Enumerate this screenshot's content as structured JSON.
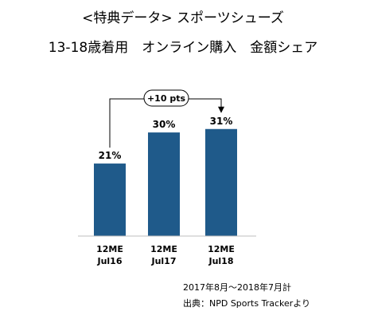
{
  "header": {
    "title": "<特典データ> スポーツシューズ",
    "subtitle": "13-18歳着用　オンライン購入　金額シェア"
  },
  "annotation": {
    "change_label": "+10 pts"
  },
  "footnotes": {
    "period": "2017年8月～2018年7月計",
    "source": "出典：NPD Sports Trackerより"
  },
  "colors": {
    "bar": "#1f5a8a",
    "axis": "#bfbfbf",
    "arrow": "#000000"
  },
  "chart_data": {
    "type": "bar",
    "title": "13-18歳着用　オンライン購入　金額シェア",
    "categories": [
      [
        "12ME",
        "Jul16"
      ],
      [
        "12ME",
        "Jul17"
      ],
      [
        "12ME",
        "Jul18"
      ]
    ],
    "values": [
      21,
      30,
      31
    ],
    "value_labels": [
      "21%",
      "30%",
      "31%"
    ],
    "unit": "%",
    "ylim": [
      0,
      35
    ],
    "grid": false,
    "xlabel": "",
    "ylabel": ""
  }
}
